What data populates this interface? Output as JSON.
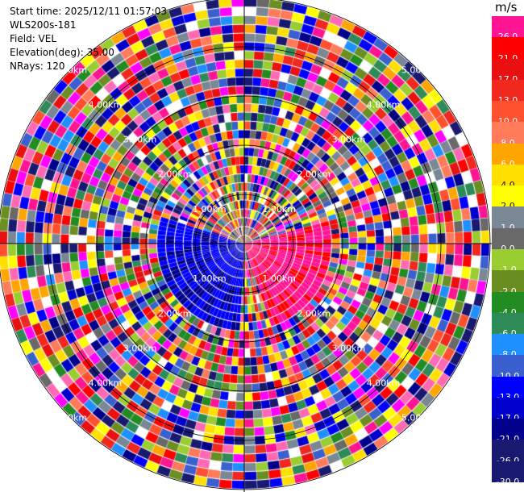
{
  "header": {
    "start_time": "Start time: 2025/12/11 01:57:03",
    "instrument": "WLS200s-181",
    "field": "Field: VEL",
    "elevation": "Elevation(deg): 35.00",
    "nrays": "NRays: 120"
  },
  "colorbar": {
    "unit": "m/s",
    "levels": [
      {
        "label": "26.0",
        "color": "#ff1493"
      },
      {
        "label": "21.0",
        "color": "#ff0000"
      },
      {
        "label": "17.0",
        "color": "#e81010"
      },
      {
        "label": "13.0",
        "color": "#f0281e"
      },
      {
        "label": "10.0",
        "color": "#ff5030"
      },
      {
        "label": "8.0",
        "color": "#ff7b5a"
      },
      {
        "label": "6.0",
        "color": "#ffa500"
      },
      {
        "label": "4.0",
        "color": "#ffe000"
      },
      {
        "label": "2.0",
        "color": "#ffff00"
      },
      {
        "label": "1.0",
        "color": "#7a8794"
      },
      {
        "label": "0.0",
        "color": "#696969"
      },
      {
        "label": "-1.0",
        "color": "#9acd32"
      },
      {
        "label": "-2.0",
        "color": "#6b8e23"
      },
      {
        "label": "-4.0",
        "color": "#228b22"
      },
      {
        "label": "-6.0",
        "color": "#2e8b57"
      },
      {
        "label": "-8.0",
        "color": "#1e90ff"
      },
      {
        "label": "-10.0",
        "color": "#3a60d0"
      },
      {
        "label": "-13.0",
        "color": "#0000ff"
      },
      {
        "label": "-17.0",
        "color": "#0000cd"
      },
      {
        "label": "-21.0",
        "color": "#00008b"
      },
      {
        "label": "-26.0",
        "color": "#191970"
      },
      {
        "label": "-30.0",
        "color": "#191970"
      }
    ]
  },
  "range_rings": [
    "1.00km",
    "2.00km",
    "3.00km",
    "4.00km",
    "5.00km"
  ],
  "ppi": {
    "n_rays": 120,
    "max_range_km": 5.0
  }
}
